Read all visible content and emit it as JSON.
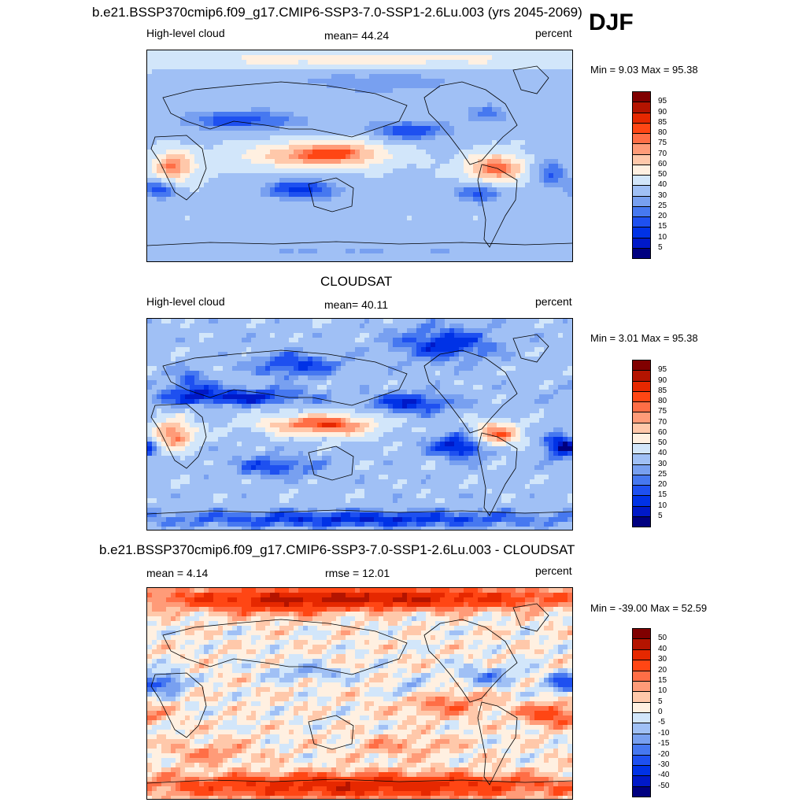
{
  "season": "DJF",
  "colors": {
    "abs_scale": [
      "#000080",
      "#0019c8",
      "#0032e6",
      "#1e50f0",
      "#4678f0",
      "#78a0f0",
      "#a0c0f5",
      "#d2e6fa",
      "#fff0e1",
      "#ffc8aa",
      "#ff9b78",
      "#ff6e46",
      "#ff4614",
      "#e62800",
      "#b41400",
      "#800000"
    ],
    "diff_scale": [
      "#000080",
      "#0019c8",
      "#0032e6",
      "#1e50f0",
      "#4678f0",
      "#78a0f0",
      "#a0c0f5",
      "#d2e6fa",
      "#fff0e1",
      "#ffc8aa",
      "#ff9b78",
      "#ff6e46",
      "#ff4614",
      "#e62800",
      "#b41400",
      "#800000"
    ]
  },
  "panels": [
    {
      "title": "b.e21.BSSP370cmip6.f09_g17.CMIP6-SSP3-7.0-SSP1-2.6Lu.003 (yrs 2045-2069)",
      "left_label": "High-level cloud",
      "center_label": "mean=  44.24",
      "units": "percent",
      "minmax": "Min =   9.03 Max =  95.38",
      "colorbar_ticks": [
        "95",
        "90",
        "85",
        "80",
        "75",
        "70",
        "60",
        "50",
        "40",
        "30",
        "25",
        "20",
        "15",
        "10",
        "5"
      ]
    },
    {
      "title": "CLOUDSAT",
      "left_label": "High-level cloud",
      "center_label": "mean=  40.11",
      "units": "percent",
      "minmax": "Min =   3.01 Max =  95.38",
      "colorbar_ticks": [
        "95",
        "90",
        "85",
        "80",
        "75",
        "70",
        "60",
        "50",
        "40",
        "30",
        "25",
        "20",
        "15",
        "10",
        "5"
      ]
    },
    {
      "title": "b.e21.BSSP370cmip6.f09_g17.CMIP6-SSP3-7.0-SSP1-2.6Lu.003 - CLOUDSAT",
      "left_label": "mean =   4.14",
      "center_label": "rmse =  12.01",
      "units": "percent",
      "minmax": "Min = -39.00 Max =  52.59",
      "colorbar_ticks": [
        "50",
        "40",
        "30",
        "20",
        "15",
        "10",
        "5",
        "0",
        "-5",
        "-10",
        "-15",
        "-20",
        "-30",
        "-40",
        "-50"
      ]
    }
  ]
}
